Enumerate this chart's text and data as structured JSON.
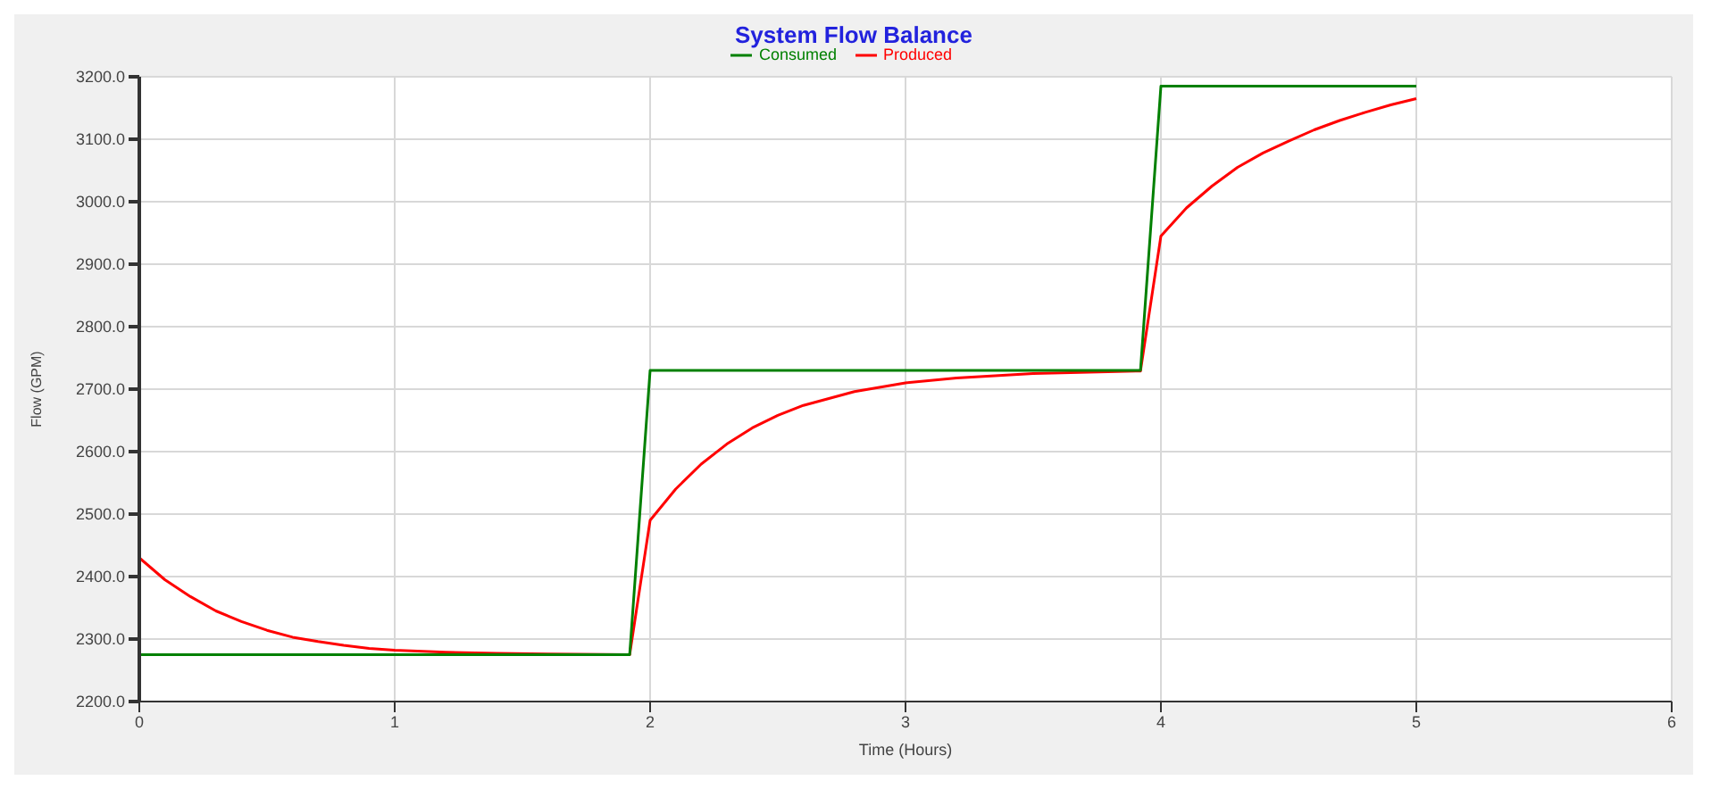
{
  "chart_data": {
    "type": "line",
    "title": "System Flow Balance",
    "xlabel": "Time (Hours)",
    "ylabel": "Flow (GPM)",
    "xlim": [
      0,
      6
    ],
    "xticks": [
      0,
      1,
      2,
      3,
      4,
      5,
      6
    ],
    "ylim": [
      2200,
      3200
    ],
    "yticks": [
      {
        "value": 2200,
        "label": "2200.0"
      },
      {
        "value": 2300,
        "label": "2300.0"
      },
      {
        "value": 2400,
        "label": "2400.0"
      },
      {
        "value": 2500,
        "label": "2500.0"
      },
      {
        "value": 2600,
        "label": "2600.0"
      },
      {
        "value": 2700,
        "label": "2700.0"
      },
      {
        "value": 2800,
        "label": "2800.0"
      },
      {
        "value": 2900,
        "label": "2900.0"
      },
      {
        "value": 3000,
        "label": "3000.0"
      },
      {
        "value": 3100,
        "label": "3100.0"
      },
      {
        "value": 3200,
        "label": "3200.0"
      }
    ],
    "grid": true,
    "legend": "top",
    "marker": "none",
    "line_style": "solid",
    "series": [
      {
        "name": "Produced",
        "color": "#ff0000",
        "x": [
          0,
          0.1,
          0.2,
          0.3,
          0.4,
          0.5,
          0.6,
          0.7,
          0.8,
          0.9,
          1.0,
          1.2,
          1.4,
          1.6,
          1.92,
          2.0,
          2.1,
          2.2,
          2.3,
          2.4,
          2.5,
          2.6,
          2.8,
          3.0,
          3.2,
          3.5,
          3.92,
          4.0,
          4.1,
          4.2,
          4.3,
          4.4,
          4.5,
          4.6,
          4.7,
          4.8,
          4.9,
          5.0
        ],
        "values": [
          2430,
          2395,
          2368,
          2345,
          2328,
          2314,
          2303,
          2296,
          2290,
          2285,
          2282,
          2279,
          2277,
          2276,
          2275,
          2490,
          2540,
          2580,
          2612,
          2638,
          2658,
          2674,
          2696,
          2710,
          2718,
          2725,
          2729,
          2945,
          2990,
          3025,
          3055,
          3078,
          3097,
          3115,
          3130,
          3143,
          3155,
          3165
        ]
      },
      {
        "name": "Consumed",
        "color": "#008000",
        "x": [
          0,
          1.92,
          2.0,
          3.92,
          4.0,
          5.0
        ],
        "values": [
          2275,
          2275,
          2730,
          2730,
          3185,
          3185
        ]
      }
    ]
  }
}
